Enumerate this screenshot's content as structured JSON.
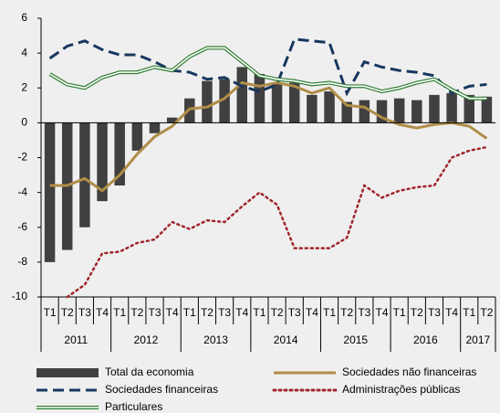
{
  "chart_data": {
    "type": "bar",
    "categories": [
      "T1",
      "T2",
      "T3",
      "T4",
      "T1",
      "T2",
      "T3",
      "T4",
      "T1",
      "T2",
      "T3",
      "T4",
      "T1",
      "T2",
      "T3",
      "T4",
      "T1",
      "T2",
      "T3",
      "T4",
      "T1",
      "T2",
      "T3",
      "T4",
      "T1",
      "T2"
    ],
    "year_groups": [
      {
        "label": "2011",
        "quarters": 4
      },
      {
        "label": "2012",
        "quarters": 4
      },
      {
        "label": "2013",
        "quarters": 4
      },
      {
        "label": "2014",
        "quarters": 4
      },
      {
        "label": "2015",
        "quarters": 4
      },
      {
        "label": "2016",
        "quarters": 4
      },
      {
        "label": "2017",
        "quarters": 2
      }
    ],
    "ylim": [
      -10,
      6
    ],
    "yticks": [
      -10,
      -8,
      -6,
      -4,
      -2,
      0,
      2,
      4,
      6
    ],
    "series": [
      {
        "name": "Total da economia",
        "type": "bar",
        "color": "#404040",
        "values": [
          -8.0,
          -7.3,
          -6.0,
          -4.5,
          -3.6,
          -1.6,
          -0.6,
          0.3,
          1.4,
          2.4,
          2.5,
          3.2,
          2.8,
          2.3,
          2.3,
          1.6,
          1.8,
          1.2,
          1.3,
          1.3,
          1.4,
          1.3,
          1.6,
          1.7,
          1.6,
          1.5
        ]
      },
      {
        "name": "Sociedades não financeiras",
        "type": "line",
        "style": "solid",
        "color": "#b08d47",
        "values": [
          -3.6,
          -3.6,
          -3.2,
          -3.9,
          -3.0,
          -1.8,
          -0.8,
          -0.2,
          0.8,
          0.9,
          1.4,
          2.3,
          2.1,
          2.3,
          2.1,
          1.7,
          2.0,
          1.0,
          0.9,
          0.3,
          -0.1,
          -0.3,
          -0.1,
          0.0,
          -0.2,
          -0.9
        ]
      },
      {
        "name": "Sociedades financeiras",
        "type": "line",
        "style": "dashed",
        "color": "#17375e",
        "values": [
          3.7,
          4.4,
          4.7,
          4.2,
          3.9,
          3.9,
          3.5,
          3.0,
          2.9,
          2.5,
          2.6,
          2.1,
          1.8,
          2.2,
          4.8,
          4.7,
          4.6,
          1.7,
          3.5,
          3.2,
          3.0,
          2.9,
          2.7,
          1.7,
          2.1,
          2.2
        ]
      },
      {
        "name": "Administrações públicas",
        "type": "line",
        "style": "dotted",
        "color": "#a0262b",
        "values": [
          null,
          -10.0,
          -9.3,
          -7.5,
          -7.4,
          -6.9,
          -6.7,
          -5.7,
          -6.1,
          -5.6,
          -5.7,
          -4.8,
          -4.0,
          -4.7,
          -7.2,
          -7.2,
          -7.2,
          -6.6,
          -3.6,
          -4.3,
          -3.9,
          -3.7,
          -3.6,
          -2.0,
          -1.6,
          -1.4
        ]
      },
      {
        "name": "Particulares",
        "type": "line",
        "style": "double",
        "color": "#2e7d32",
        "values": [
          2.8,
          2.2,
          2.0,
          2.6,
          2.9,
          2.9,
          3.2,
          3.0,
          3.8,
          4.3,
          4.3,
          3.5,
          2.7,
          2.5,
          2.4,
          2.2,
          2.3,
          2.1,
          2.1,
          1.8,
          2.0,
          2.3,
          2.5,
          1.9,
          1.4,
          1.4
        ]
      }
    ]
  }
}
